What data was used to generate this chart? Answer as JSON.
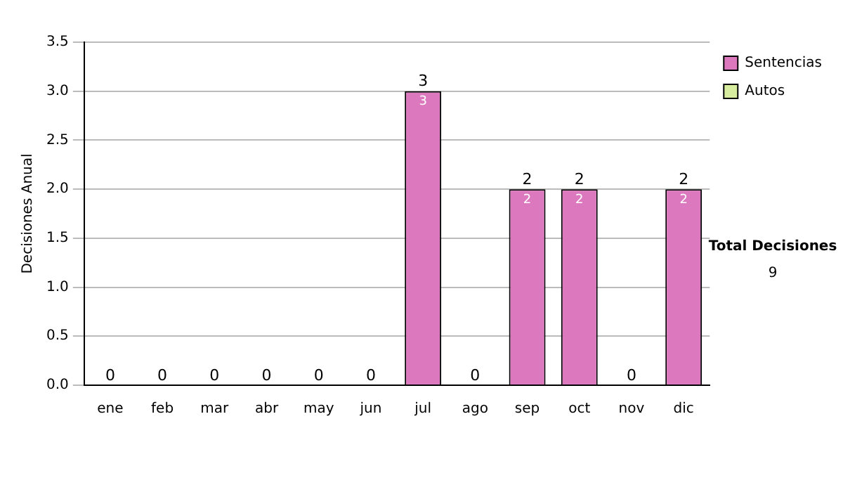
{
  "chart_data": {
    "type": "bar",
    "stacked": true,
    "ylabel": "Decisiones Anual",
    "categories": [
      "ene",
      "feb",
      "mar",
      "abr",
      "may",
      "jun",
      "jul",
      "ago",
      "sep",
      "oct",
      "nov",
      "dic"
    ],
    "series": [
      {
        "name": "Sentencias",
        "color": "#dc78be",
        "values": [
          0,
          0,
          0,
          0,
          0,
          0,
          3,
          0,
          2,
          2,
          0,
          2
        ],
        "value_labels": [
          null,
          null,
          null,
          null,
          null,
          null,
          "3",
          null,
          "2",
          "2",
          null,
          "2"
        ]
      },
      {
        "name": "Autos",
        "color": "#d8eca0",
        "values": [
          0,
          0,
          0,
          0,
          0,
          0,
          0,
          0,
          0,
          0,
          0,
          0
        ]
      }
    ],
    "totals": [
      "0",
      "0",
      "0",
      "0",
      "0",
      "0",
      "3",
      "0",
      "2",
      "2",
      "0",
      "2"
    ],
    "ylim": [
      0,
      3.5
    ],
    "yticks": [
      {
        "value": 0,
        "label": "0.0"
      },
      {
        "value": 0.5,
        "label": "0.5"
      },
      {
        "value": 1,
        "label": "1.0"
      },
      {
        "value": 1.5,
        "label": "1.5"
      },
      {
        "value": 2,
        "label": "2.0"
      },
      {
        "value": 2.5,
        "label": "2.5"
      },
      {
        "value": 3,
        "label": "3.0"
      },
      {
        "value": 3.5,
        "label": "3.5"
      }
    ],
    "grid": "y",
    "legend": "right",
    "annotations": [
      "Total Decisiones",
      "9"
    ]
  }
}
